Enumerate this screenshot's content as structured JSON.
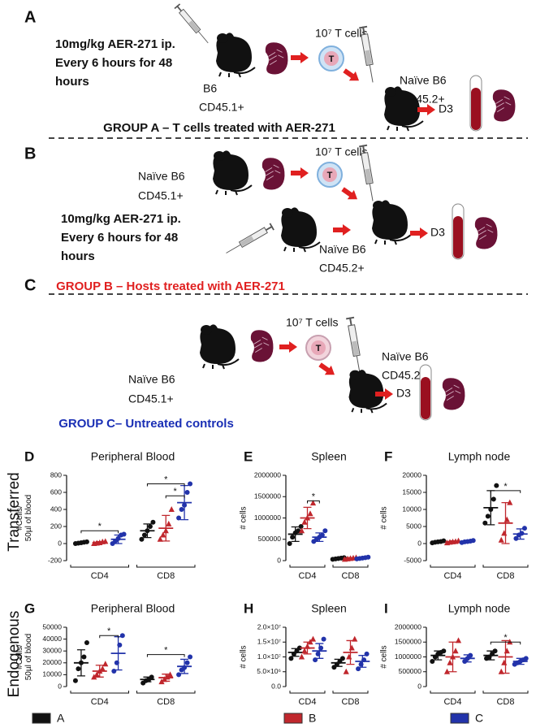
{
  "schematic": {
    "A": {
      "letter": "A",
      "dose": [
        "10mg/kg AER-271 ip.",
        "Every 6 hours for 48",
        "hours"
      ],
      "donor": [
        "B6",
        "CD45.1+"
      ],
      "cells": "10⁷ T cells",
      "cell": "T",
      "host": [
        "Naïve B6",
        "CD45.2+"
      ],
      "day": "D3",
      "group": "GROUP A – T cells treated with AER-271"
    },
    "B": {
      "letter": "B",
      "donor": [
        "Naïve B6",
        "CD45.1+"
      ],
      "cells": "10⁷ T cells",
      "cell": "T",
      "dose": [
        "10mg/kg AER-271 ip.",
        "Every 6 hours for 48",
        "hours"
      ],
      "host": [
        "Naïve B6",
        "CD45.2+"
      ],
      "day": "D3",
      "group": "GROUP B – Hosts treated with AER-271"
    },
    "C": {
      "letter": "C",
      "cells": "10⁷ T cells",
      "cell": "T",
      "host": [
        "Naïve B6",
        "CD45.2+"
      ],
      "donor": [
        "Naïve B6",
        "CD45.1+"
      ],
      "day": "D3",
      "group": "GROUP C– Untreated controls"
    }
  },
  "rows": [
    "Transferred",
    "Endogenous"
  ],
  "legend": [
    {
      "name": "A",
      "color": "#111111"
    },
    {
      "name": "B",
      "color": "#c0272d"
    },
    {
      "name": "C",
      "color": "#2233aa"
    }
  ],
  "chart_data": [
    {
      "type": "dot",
      "panel": "D",
      "title": "Peripheral Blood",
      "ylabel": [
        "#Cells/",
        "50µl of blood"
      ],
      "categories": [
        "CD4",
        "CD8"
      ],
      "ylim": [
        -200,
        800
      ],
      "yticks": [
        -200,
        0,
        200,
        400,
        600,
        800
      ],
      "series": [
        {
          "color": "#111111",
          "marker": "circle",
          "values": [
            10,
            150
          ],
          "errors": [
            10,
            80
          ],
          "points": [
            [
              0,
              5,
              10,
              15,
              20
            ],
            [
              50,
              100,
              150,
              200,
              250
            ]
          ]
        },
        {
          "color": "#c0272d",
          "marker": "triangle",
          "values": [
            12,
            180
          ],
          "errors": [
            10,
            150
          ],
          "points": [
            [
              0,
              5,
              10,
              20,
              25
            ],
            [
              50,
              100,
              150,
              230,
              400
            ]
          ]
        },
        {
          "color": "#2233aa",
          "marker": "circle",
          "values": [
            50,
            480
          ],
          "errors": [
            50,
            200
          ],
          "points": [
            [
              0,
              30,
              60,
              100,
              110
            ],
            [
              300,
              400,
              450,
              600,
              700
            ]
          ]
        }
      ],
      "brackets": [
        {
          "text": "*",
          "y": 150,
          "from": [
            0,
            0
          ],
          "to": [
            0,
            2
          ]
        },
        {
          "text": "*",
          "y": 700,
          "from": [
            1,
            0
          ],
          "to": [
            1,
            2
          ]
        },
        {
          "text": "*",
          "y": 560,
          "from": [
            1,
            1
          ],
          "to": [
            1,
            2
          ]
        }
      ]
    },
    {
      "type": "dot",
      "panel": "E",
      "title": "Spleen",
      "ylabel": [
        "# cells"
      ],
      "categories": [
        "CD4",
        "CD8"
      ],
      "ylim": [
        0,
        2000000
      ],
      "yticks": [
        0,
        500000,
        1000000,
        1500000,
        2000000
      ],
      "series": [
        {
          "color": "#111111",
          "marker": "circle",
          "values": [
            620000,
            50000
          ],
          "errors": [
            170000,
            20000
          ],
          "points": [
            [
              400000,
              550000,
              650000,
              700000,
              800000
            ],
            [
              30000,
              40000,
              50000,
              60000,
              70000
            ]
          ]
        },
        {
          "color": "#c0272d",
          "marker": "triangle",
          "values": [
            1000000,
            50000
          ],
          "errors": [
            250000,
            20000
          ],
          "points": [
            [
              700000,
              900000,
              1000000,
              1100000,
              1350000
            ],
            [
              30000,
              40000,
              50000,
              60000,
              70000
            ]
          ]
        },
        {
          "color": "#2233aa",
          "marker": "circle",
          "values": [
            550000,
            60000
          ],
          "errors": [
            100000,
            20000
          ],
          "points": [
            [
              450000,
              500000,
              550000,
              600000,
              700000
            ],
            [
              40000,
              50000,
              60000,
              70000,
              80000
            ]
          ]
        }
      ],
      "brackets": [
        {
          "text": "*",
          "y": 1400000,
          "from": [
            0,
            1
          ],
          "to": [
            0,
            2
          ]
        }
      ]
    },
    {
      "type": "dot",
      "panel": "F",
      "title": "Lymph node",
      "ylabel": [
        "# cells"
      ],
      "categories": [
        "CD4",
        "CD8"
      ],
      "ylim": [
        -5000,
        20000
      ],
      "yticks": [
        -5000,
        0,
        5000,
        10000,
        15000,
        20000
      ],
      "series": [
        {
          "color": "#111111",
          "marker": "circle",
          "values": [
            500,
            10500
          ],
          "errors": [
            300,
            5000
          ],
          "points": [
            [
              200,
              400,
              500,
              600,
              800
            ],
            [
              6000,
              8000,
              10000,
              13000,
              17000
            ]
          ]
        },
        {
          "color": "#c0272d",
          "marker": "triangle",
          "values": [
            500,
            6000
          ],
          "errors": [
            300,
            6000
          ],
          "points": [
            [
              200,
              400,
              500,
              600,
              800
            ],
            [
              1000,
              3000,
              7000,
              12000
            ]
          ]
        },
        {
          "color": "#2233aa",
          "marker": "circle",
          "values": [
            600,
            2800
          ],
          "errors": [
            300,
            1500
          ],
          "points": [
            [
              300,
              500,
              600,
              700,
              900
            ],
            [
              1500,
              2500,
              3000,
              4500
            ]
          ]
        }
      ],
      "brackets": [
        {
          "text": "*",
          "y": 15500,
          "from": [
            1,
            0
          ],
          "to": [
            1,
            2
          ]
        }
      ]
    },
    {
      "type": "dot",
      "panel": "G",
      "title": "Peripheral Blood",
      "ylabel": [
        "#Cells/",
        "50µl of blood"
      ],
      "categories": [
        "CD4",
        "CD8"
      ],
      "ylim": [
        0,
        50000
      ],
      "yticks": [
        0,
        10000,
        20000,
        30000,
        40000,
        50000
      ],
      "series": [
        {
          "color": "#111111",
          "marker": "circle",
          "values": [
            20000,
            6000
          ],
          "errors": [
            11000,
            2000
          ],
          "points": [
            [
              5000,
              15000,
              20000,
              25000,
              37000
            ],
            [
              3000,
              5000,
              6000,
              8000
            ]
          ]
        },
        {
          "color": "#c0272d",
          "marker": "triangle",
          "values": [
            13000,
            7500
          ],
          "errors": [
            5000,
            3000
          ],
          "points": [
            [
              8000,
              10000,
              13000,
              15000,
              19000
            ],
            [
              4000,
              6000,
              8000,
              10000
            ]
          ]
        },
        {
          "color": "#2233aa",
          "marker": "circle",
          "values": [
            28000,
            17000
          ],
          "errors": [
            14000,
            6000
          ],
          "points": [
            [
              13000,
              20000,
              35000,
              43000
            ],
            [
              10000,
              14000,
              16000,
              20000,
              25000
            ]
          ]
        }
      ],
      "brackets": [
        {
          "text": "*",
          "y": 43000,
          "from": [
            0,
            1
          ],
          "to": [
            0,
            2
          ]
        },
        {
          "text": "*",
          "y": 27000,
          "from": [
            1,
            0
          ],
          "to": [
            1,
            2
          ]
        }
      ]
    },
    {
      "type": "dot",
      "panel": "H",
      "title": "Spleen",
      "ylabel": [
        "# cells"
      ],
      "categories": [
        "CD4",
        "CD8"
      ],
      "ylim": [
        0,
        20000000
      ],
      "yticks": [
        {
          "value": 0,
          "label": "0.0"
        },
        {
          "value": 5000000,
          "label": "5.0×10⁶"
        },
        {
          "value": 10000000,
          "label": "1.0×10⁷"
        },
        {
          "value": 15000000,
          "label": "1.5×10⁷"
        },
        {
          "value": 20000000,
          "label": "2.0×10⁷"
        }
      ],
      "series": [
        {
          "color": "#111111",
          "marker": "circle",
          "values": [
            11500000,
            8000000
          ],
          "errors": [
            1300000,
            1200000
          ],
          "points": [
            [
              9500000,
              11000000,
              12000000,
              13000000
            ],
            [
              6500000,
              7500000,
              8500000,
              9500000
            ]
          ]
        },
        {
          "color": "#c0272d",
          "marker": "triangle",
          "values": [
            13000000,
            11500000
          ],
          "errors": [
            2000000,
            4000000
          ],
          "points": [
            [
              10000000,
              12000000,
              13500000,
              15000000,
              16000000
            ],
            [
              5000000,
              10000000,
              13000000,
              16000000
            ]
          ]
        },
        {
          "color": "#2233aa",
          "marker": "circle",
          "values": [
            12000000,
            8500000
          ],
          "errors": [
            2500000,
            2000000
          ],
          "points": [
            [
              9000000,
              11000000,
              13000000,
              16000000
            ],
            [
              6000000,
              7500000,
              9000000,
              11000000
            ]
          ]
        }
      ],
      "brackets": []
    },
    {
      "type": "dot",
      "panel": "I",
      "title": "Lymph node",
      "ylabel": [
        "# cells"
      ],
      "categories": [
        "CD4",
        "CD8"
      ],
      "ylim": [
        0,
        2000000
      ],
      "yticks": [
        0,
        500000,
        1000000,
        1500000,
        2000000
      ],
      "series": [
        {
          "color": "#111111",
          "marker": "circle",
          "values": [
            1050000,
            1050000
          ],
          "errors": [
            150000,
            150000
          ],
          "points": [
            [
              850000,
              1000000,
              1100000,
              1150000,
              1200000
            ],
            [
              950000,
              1000000,
              1100000,
              1200000
            ]
          ]
        },
        {
          "color": "#c0272d",
          "marker": "triangle",
          "values": [
            1000000,
            1000000
          ],
          "errors": [
            500000,
            550000
          ],
          "points": [
            [
              500000,
              800000,
              1000000,
              1200000,
              1550000
            ],
            [
              500000,
              800000,
              1200000,
              1500000
            ]
          ]
        },
        {
          "color": "#2233aa",
          "marker": "circle",
          "values": [
            950000,
            850000
          ],
          "errors": [
            120000,
            100000
          ],
          "points": [
            [
              850000,
              950000,
              1050000
            ],
            [
              750000,
              800000,
              850000,
              900000,
              950000
            ]
          ]
        }
      ],
      "brackets": [
        {
          "text": "*",
          "y": 1500000,
          "from": [
            1,
            0
          ],
          "to": [
            1,
            2
          ]
        }
      ]
    }
  ]
}
